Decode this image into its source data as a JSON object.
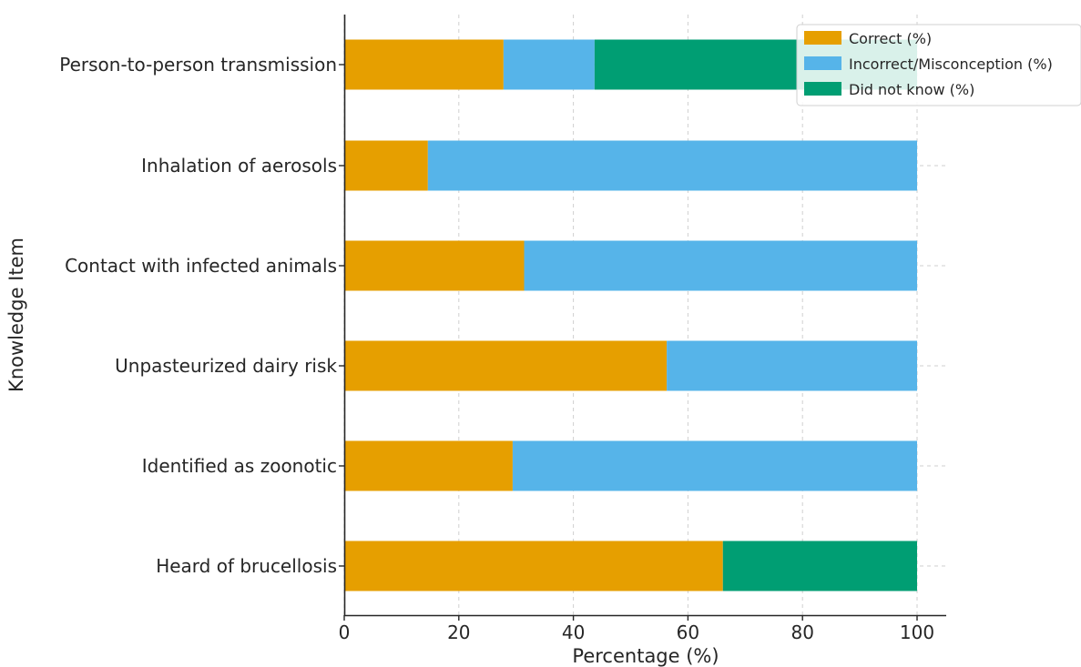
{
  "chart_data": {
    "type": "bar",
    "orientation": "horizontal",
    "stacked": true,
    "categories": [
      "Person-to-person transmission",
      "Inhalation of aerosols",
      "Contact with infected animals",
      "Unpasteurized dairy risk",
      "Identified as zoonotic",
      "Heard of brucellosis"
    ],
    "series": [
      {
        "name": "Correct (%)",
        "color": "#E69F00",
        "values": [
          27.8,
          14.6,
          31.4,
          56.3,
          29.4,
          66.1
        ]
      },
      {
        "name": "Incorrect/Misconception (%)",
        "color": "#56B4E9",
        "values": [
          15.9,
          85.4,
          68.6,
          43.7,
          70.6,
          0
        ]
      },
      {
        "name": "Did not know (%)",
        "color": "#009E73",
        "values": [
          56.3,
          0,
          0,
          0,
          0,
          33.9
        ]
      }
    ],
    "xlabel": "Percentage (%)",
    "ylabel": "Knowledge Item",
    "xlim": [
      0,
      105
    ],
    "xticks": [
      "0",
      "20",
      "40",
      "60",
      "80",
      "100"
    ],
    "xtick_values": [
      0,
      20,
      40,
      60,
      80,
      100
    ],
    "grid": true,
    "legend_position": "top-right"
  }
}
